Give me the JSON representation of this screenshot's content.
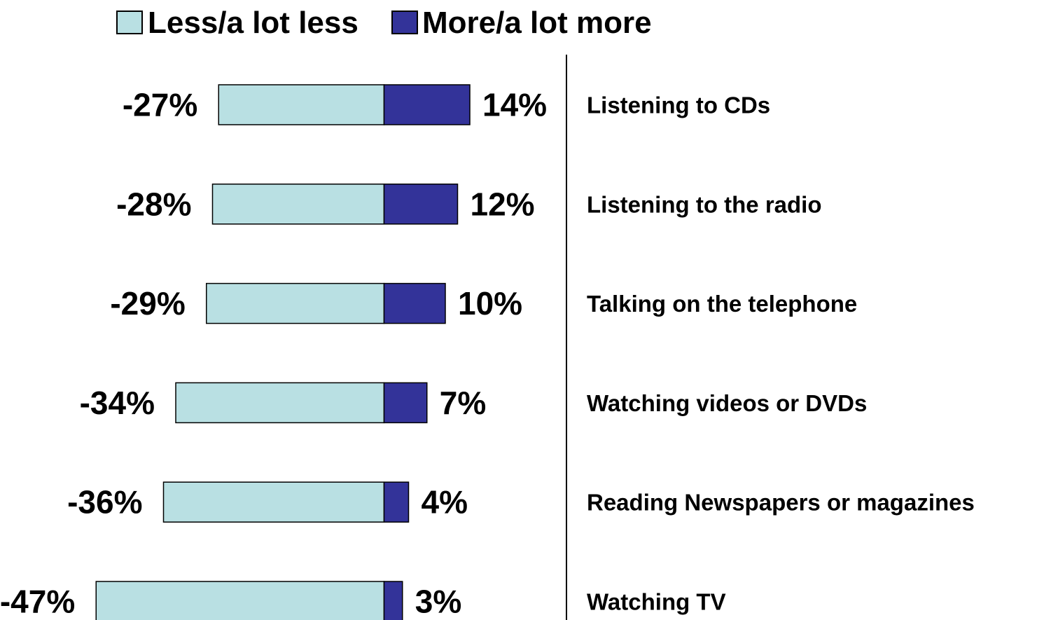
{
  "chart_data": {
    "type": "bar",
    "orientation": "horizontal-diverging",
    "categories": [
      "Listening to CDs",
      "Listening to the radio",
      "Talking on the telephone",
      "Watching videos or DVDs",
      "Reading Newspapers or magazines",
      "Watching TV"
    ],
    "series": [
      {
        "name": "Less/a lot less",
        "values": [
          -27,
          -28,
          -29,
          -34,
          -36,
          -47
        ],
        "labels": [
          "-27%",
          "-28%",
          "-29%",
          "-34%",
          "-36%",
          "-47%"
        ],
        "color": "#b9e0e3"
      },
      {
        "name": "More/a lot more",
        "values": [
          14,
          12,
          10,
          7,
          4,
          3
        ],
        "labels": [
          "14%",
          "12%",
          "10%",
          "7%",
          "4%",
          "3%"
        ],
        "color": "#333399"
      }
    ],
    "legend_position": "top",
    "value_unit": "%",
    "grid": false
  }
}
